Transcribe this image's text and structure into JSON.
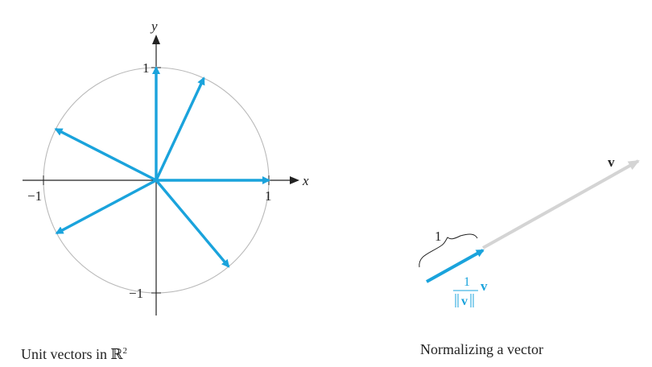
{
  "left_panel": {
    "x_axis_label": "x",
    "y_axis_label": "y",
    "tick_pos_x": "1",
    "tick_neg_x": "−1",
    "tick_pos_y": "1",
    "tick_neg_y": "−1",
    "vector_angles_deg": [
      0,
      65,
      90,
      153,
      208,
      310
    ],
    "caption_text": "Unit vectors in ",
    "caption_space": "ℝ",
    "caption_exp": "2"
  },
  "right_panel": {
    "vector_label": "v",
    "brace_label": "1",
    "unit_num": "1",
    "unit_den": "v",
    "unit_vec": "v",
    "caption": "Normalizing a vector"
  },
  "colors": {
    "accent": "#1aa3dc",
    "circle": "#b9b9b9",
    "axis": "#222222",
    "faded_vector": "#d4d4d4"
  }
}
